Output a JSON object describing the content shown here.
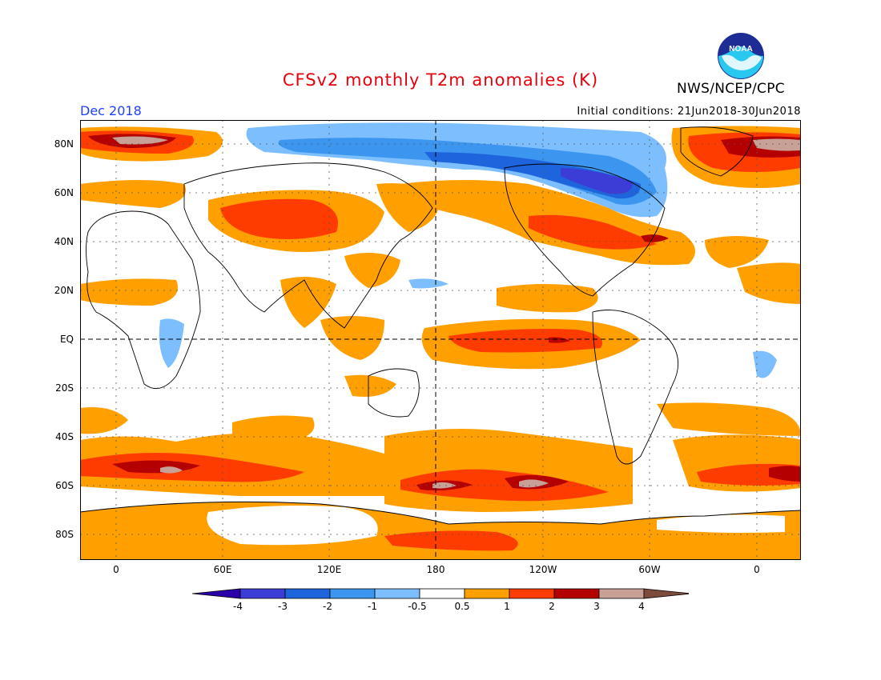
{
  "title": "CFSv2 monthly T2m anomalies (K)",
  "month": "Dec 2018",
  "initial_conditions": "Initial conditions: 21Jun2018-30Jun2018",
  "agency": "NWS/NCEP/CPC",
  "logo_text": "NOAA",
  "lat_labels": [
    "80N",
    "60N",
    "40N",
    "20N",
    "EQ",
    "20S",
    "40S",
    "60S",
    "80S"
  ],
  "lon_labels": [
    "0",
    "60E",
    "120E",
    "180",
    "120W",
    "60W",
    "0"
  ],
  "colorbar": {
    "labels": [
      "-4",
      "-3",
      "-2",
      "-1",
      "-0.5",
      "0.5",
      "1",
      "2",
      "3",
      "4"
    ],
    "colors": [
      "#2a00a8",
      "#3c3cd6",
      "#1e64dc",
      "#3c96f0",
      "#7dbeff",
      "#ffffff",
      "#ff9f00",
      "#ff3c00",
      "#b40000",
      "#c8a096",
      "#7d4b3c"
    ]
  },
  "palette": {
    "frame": "#000000",
    "title_red": "#e8000b",
    "month_blue": "#1f3fff"
  }
}
